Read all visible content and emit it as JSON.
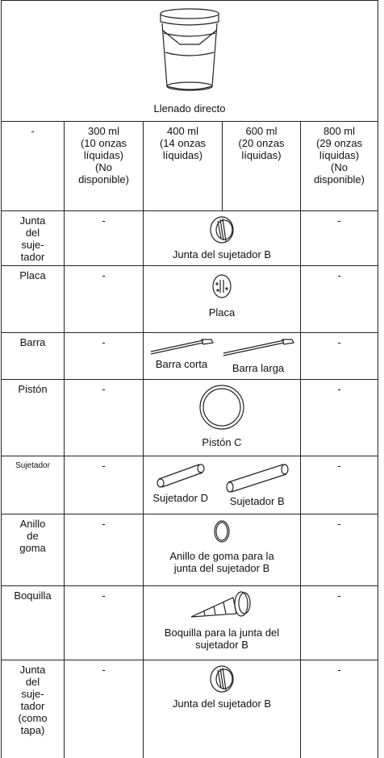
{
  "header": {
    "caption": "Llenado directo"
  },
  "columns": {
    "label": "-",
    "sizes": [
      [
        "300 ml",
        "(10 onzas",
        "líquidas)",
        "(No",
        "disponible)"
      ],
      [
        "400 ml",
        "(14 onzas",
        "líquidas)"
      ],
      [
        "600 ml",
        "(20 onzas",
        "líquidas)"
      ],
      [
        "800 ml",
        "(29 onzas",
        "líquidas)",
        "(No",
        "disponible)"
      ]
    ]
  },
  "rows": [
    {
      "label": [
        "Junta",
        "del",
        "suje-",
        "tador"
      ],
      "c300": "-",
      "items": [
        {
          "caption": [
            "Junta del sujetador B"
          ]
        }
      ],
      "c800": "-"
    },
    {
      "label": [
        "Placa"
      ],
      "c300": "-",
      "items": [
        {
          "caption": [
            "Placa"
          ]
        }
      ],
      "c800": "-"
    },
    {
      "label": [
        "Barra"
      ],
      "c300": "-",
      "items": [
        {
          "caption": [
            "Barra corta"
          ]
        },
        {
          "caption": [
            "Barra larga"
          ]
        }
      ],
      "c800": "-"
    },
    {
      "label": [
        "Pistón"
      ],
      "c300": "-",
      "items": [
        {
          "caption": [
            "Pistón C"
          ]
        }
      ],
      "c800": "-"
    },
    {
      "label": [
        "Sujetador"
      ],
      "c300": "-",
      "items": [
        {
          "caption": [
            "Sujetador D"
          ]
        },
        {
          "caption": [
            "Sujetador B"
          ]
        }
      ],
      "c800": "-"
    },
    {
      "label": [
        "Anillo",
        "de",
        "goma"
      ],
      "c300": "-",
      "items": [
        {
          "caption": [
            "Anillo de goma para la",
            "junta del sujetador B"
          ]
        }
      ],
      "c800": "-"
    },
    {
      "label": [
        "Boquilla"
      ],
      "c300": "-",
      "items": [
        {
          "caption": [
            "Boquilla para la junta del",
            "sujetador B"
          ]
        }
      ],
      "c800": "-"
    },
    {
      "label": [
        "Junta",
        "del",
        "suje-",
        "tador",
        "(como",
        "tapa)"
      ],
      "c300": "-",
      "items": [
        {
          "caption": [
            "Junta del sujetador B"
          ]
        }
      ],
      "c800": "-"
    }
  ]
}
